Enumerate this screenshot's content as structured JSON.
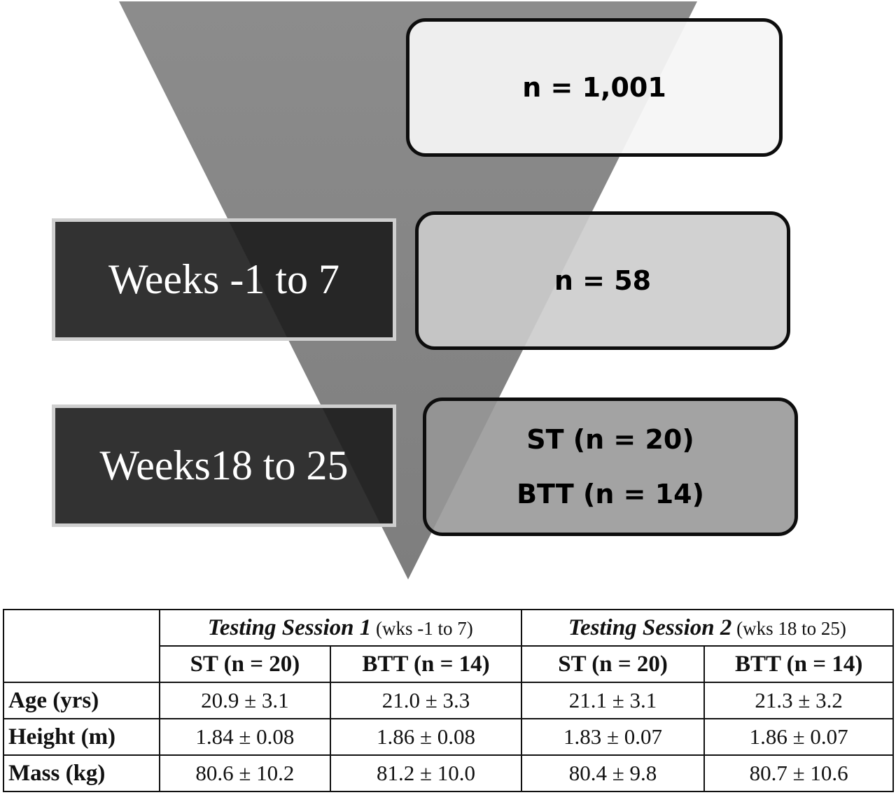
{
  "funnel": {
    "counts": {
      "top": "n = 1,001",
      "middle": "n = 58",
      "bottom_st": "ST (n = 20)",
      "bottom_btt": "BTT (n = 14)"
    },
    "weeks": {
      "first": "Weeks -1 to 7",
      "second": "Weeks18 to 25"
    }
  },
  "table": {
    "sessions": [
      {
        "title": "Testing Session 1",
        "sub": " (wks -1 to 7)"
      },
      {
        "title": "Testing Session 2",
        "sub": " (wks 18 to 25)"
      }
    ],
    "columns": [
      "ST (n = 20)",
      "BTT (n = 14)",
      "ST (n = 20)",
      "BTT (n = 14)"
    ],
    "rows": [
      {
        "label": "Age (yrs)",
        "values": [
          "20.9 ± 3.1",
          "21.0 ± 3.3",
          "21.1 ± 3.1",
          "21.3 ± 3.2"
        ]
      },
      {
        "label": "Height (m)",
        "values": [
          "1.84 ± 0.08",
          "1.86 ± 0.08",
          "1.83 ± 0.07",
          "1.86 ± 0.07"
        ]
      },
      {
        "label": "Mass (kg)",
        "values": [
          "80.6 ± 10.2",
          "81.2 ± 10.0",
          "80.4 ± 9.8",
          "80.7 ± 10.6"
        ]
      }
    ]
  }
}
